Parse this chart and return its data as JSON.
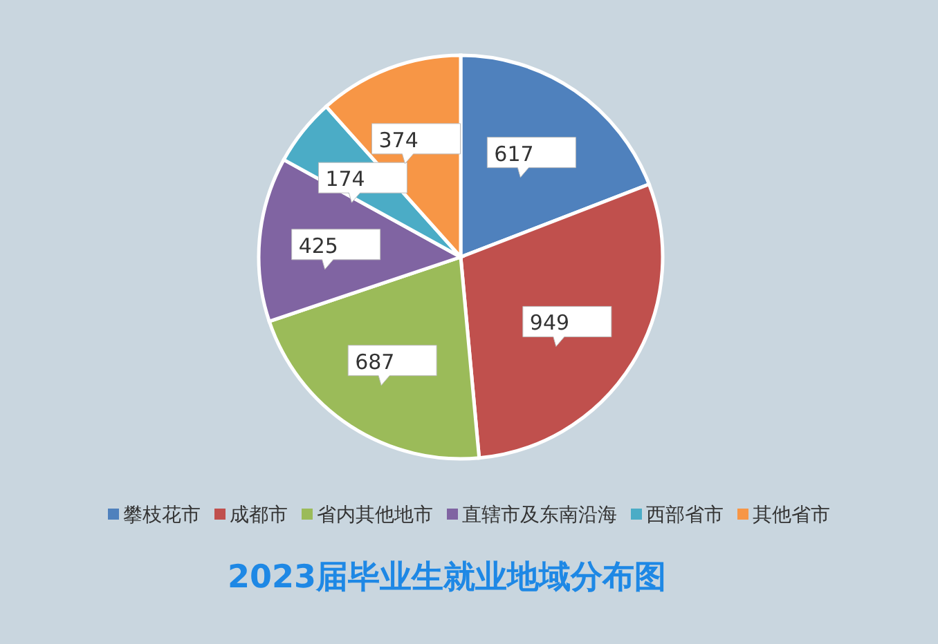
{
  "chart_data": {
    "type": "pie",
    "title": "2023届毕业生就业地域分布图",
    "categories": [
      "攀枝花市",
      "成都市",
      "省内其他地市",
      "直辖市及东南沿海",
      "西部省市",
      "其他省市"
    ],
    "values": [
      617,
      949,
      687,
      425,
      174,
      374
    ],
    "colors": [
      "#4f81bd",
      "#c0504d",
      "#9bbb59",
      "#8064a2",
      "#4bacc6",
      "#f79646"
    ],
    "data_labels": true,
    "legend": "bottom"
  }
}
